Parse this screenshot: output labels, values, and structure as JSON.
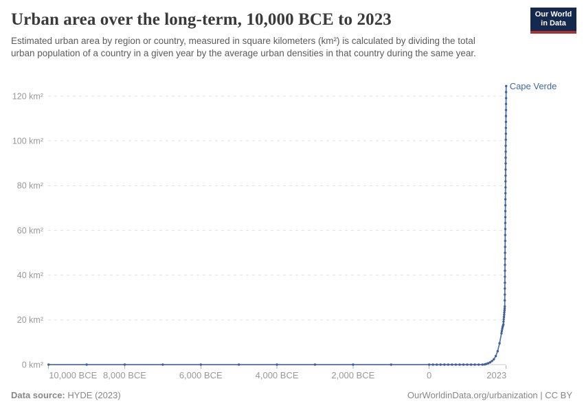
{
  "header": {
    "title": "Urban area over the long-term, 10,000 BCE to 2023",
    "subtitle": "Estimated urban area by region or country, measured in square kilometers (km²) is calculated by dividing the total urban population of a country in a given year by the average urban densities in that country during the same year.",
    "logo": {
      "line1": "Our World",
      "line2": "in Data"
    }
  },
  "footer": {
    "datasource_label": "Data source:",
    "datasource_value": " HYDE (2023)",
    "license": "OurWorldinData.org/urbanization | CC BY"
  },
  "chart_data": {
    "type": "line",
    "title": "Urban area over the long-term, 10,000 BCE to 2023",
    "entity": "Cape Verde",
    "unit": "km²",
    "xlabel": "",
    "ylabel": "",
    "x_range": [
      -10000,
      2023
    ],
    "ylim": [
      0,
      125
    ],
    "grid": "dashed-horizontal",
    "legend_position": "end-of-line-label",
    "y_ticks": [
      0,
      20,
      40,
      60,
      80,
      100,
      120
    ],
    "x_ticks": [
      {
        "year": -10000,
        "label": "10,000 BCE",
        "anchor": "start"
      },
      {
        "year": -8000,
        "label": "8,000 BCE",
        "anchor": "middle"
      },
      {
        "year": -6000,
        "label": "6,000 BCE",
        "anchor": "middle"
      },
      {
        "year": -4000,
        "label": "4,000 BCE",
        "anchor": "middle"
      },
      {
        "year": -2000,
        "label": "2,000 BCE",
        "anchor": "middle"
      },
      {
        "year": 0,
        "label": "0",
        "anchor": "middle"
      },
      {
        "year": 2023,
        "label": "2023",
        "anchor": "end"
      }
    ],
    "colors": {
      "line": "#4d6ea8",
      "marker": "#3f609c",
      "entity_label": "#4267a5",
      "gridline": "#e2e2e2",
      "axis_line": "#c9c9c9",
      "tick": "#b0b0b0",
      "tick_label": "#989898"
    },
    "series": [
      {
        "name": "Cape Verde",
        "points": [
          [
            -10000,
            0
          ],
          [
            -9000,
            0
          ],
          [
            -8000,
            0
          ],
          [
            -7000,
            0
          ],
          [
            -6000,
            0
          ],
          [
            -5000,
            0
          ],
          [
            -4000,
            0
          ],
          [
            -3000,
            0
          ],
          [
            -2000,
            0
          ],
          [
            -1000,
            0
          ],
          [
            0,
            0
          ],
          [
            100,
            0
          ],
          [
            200,
            0
          ],
          [
            300,
            0
          ],
          [
            400,
            0
          ],
          [
            500,
            0
          ],
          [
            600,
            0
          ],
          [
            700,
            0
          ],
          [
            800,
            0
          ],
          [
            900,
            0
          ],
          [
            1000,
            0
          ],
          [
            1100,
            0
          ],
          [
            1200,
            0
          ],
          [
            1300,
            0
          ],
          [
            1400,
            0
          ],
          [
            1460,
            0.1
          ],
          [
            1500,
            0.3
          ],
          [
            1550,
            0.6
          ],
          [
            1600,
            1
          ],
          [
            1650,
            1.6
          ],
          [
            1700,
            2.4
          ],
          [
            1750,
            3.8
          ],
          [
            1800,
            6
          ],
          [
            1850,
            9.5
          ],
          [
            1900,
            14
          ],
          [
            1910,
            15
          ],
          [
            1920,
            16
          ],
          [
            1930,
            16.8
          ],
          [
            1940,
            17.4
          ],
          [
            1950,
            18
          ],
          [
            1955,
            19.2
          ],
          [
            1960,
            20.3
          ],
          [
            1965,
            21.3
          ],
          [
            1970,
            22.3
          ],
          [
            1975,
            23.3
          ],
          [
            1980,
            24.2
          ],
          [
            1985,
            25.1
          ],
          [
            1986,
            26
          ],
          [
            1987,
            28.7
          ],
          [
            1988,
            31.3
          ],
          [
            1989,
            34
          ],
          [
            1990,
            36.6
          ],
          [
            1991,
            39.3
          ],
          [
            1992,
            42
          ],
          [
            1993,
            44.6
          ],
          [
            1994,
            47.3
          ],
          [
            1995,
            50
          ],
          [
            1996,
            52.6
          ],
          [
            1997,
            55.3
          ],
          [
            1998,
            57.9
          ],
          [
            1999,
            60.6
          ],
          [
            2000,
            63.3
          ],
          [
            2001,
            65.9
          ],
          [
            2002,
            68.6
          ],
          [
            2003,
            71.2
          ],
          [
            2004,
            73.9
          ],
          [
            2005,
            76.6
          ],
          [
            2006,
            79.2
          ],
          [
            2007,
            81.9
          ],
          [
            2008,
            84.5
          ],
          [
            2009,
            87.2
          ],
          [
            2010,
            89.9
          ],
          [
            2011,
            92.5
          ],
          [
            2012,
            95.2
          ],
          [
            2013,
            97.8
          ],
          [
            2014,
            100.5
          ],
          [
            2015,
            103.2
          ],
          [
            2016,
            105.8
          ],
          [
            2017,
            108.5
          ],
          [
            2018,
            111.1
          ],
          [
            2019,
            113.8
          ],
          [
            2020,
            116.5
          ],
          [
            2021,
            119.1
          ],
          [
            2022,
            121.8
          ],
          [
            2023,
            124.5
          ]
        ]
      }
    ]
  }
}
